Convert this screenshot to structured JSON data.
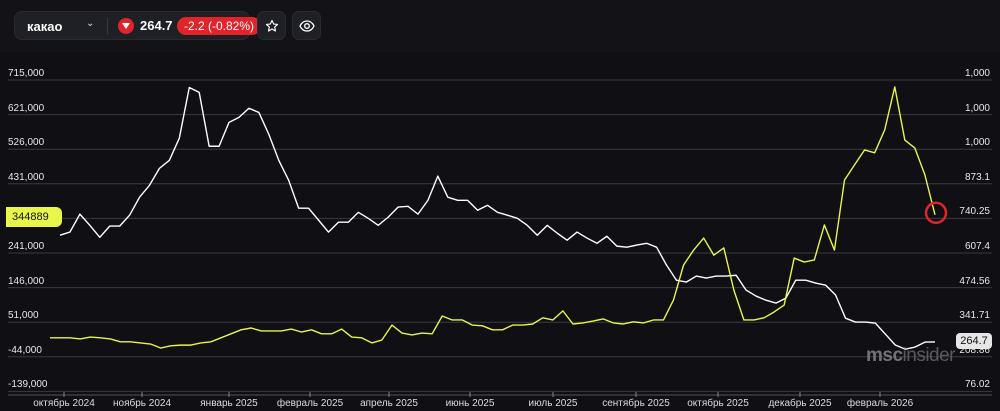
{
  "header": {
    "ticker": "какао",
    "direction_icon": "triangle-down-icon",
    "price": "264.7",
    "change": "-2.2 (-0.82%)",
    "change_color": "#e0242a",
    "favorite_icon": "star-icon",
    "watch_icon": "eye-icon"
  },
  "watermark": {
    "part1": "msc",
    "part2": "insider"
  },
  "chart_data": {
    "type": "line",
    "grid": true,
    "left_axis": {
      "ticks": [
        "715,000",
        "621,000",
        "526,000",
        "431,000",
        "241,000",
        "146,000",
        "51,000",
        "-44,000",
        "-139,000"
      ],
      "range": [
        -139000,
        715000
      ],
      "current_label": "344889"
    },
    "right_axis": {
      "ticks": [
        "1,000",
        "1,000",
        "1,000",
        "873.1",
        "740.25",
        "607.4",
        "474.56",
        "341.71",
        "208.86",
        "76.02"
      ],
      "range": [
        76.02,
        1271.7
      ],
      "current_label": "264.7"
    },
    "x_ticks": [
      "октябрь 2024",
      "ноябрь 2024",
      "январь 2025",
      "февраль 2025",
      "апрель 2025",
      "июнь 2025",
      "июль 2025",
      "сентябрь 2025",
      "октябрь 2025",
      "декабрь 2025",
      "февраль 2026"
    ],
    "series": [
      {
        "axis": "right",
        "color": "#ffffff",
        "values": [
          675,
          687,
          756,
          713,
          667,
          710,
          710,
          752,
          821,
          867,
          932,
          963,
          1048,
          1243,
          1224,
          1017,
          1017,
          1109,
          1128,
          1163,
          1147,
          1063,
          963,
          886,
          779,
          779,
          733,
          687,
          725,
          725,
          763,
          740,
          713,
          744,
          783,
          786,
          756,
          809,
          902,
          821,
          809,
          809,
          771,
          790,
          763,
          752,
          740,
          713,
          675,
          713,
          683,
          656,
          687,
          664,
          644,
          671,
          633,
          629,
          637,
          644,
          629,
          560,
          502,
          495,
          518,
          510,
          518,
          518,
          521,
          464,
          441,
          425,
          414,
          433,
          502,
          502,
          491,
          483,
          445,
          356,
          341,
          341,
          337,
          295,
          253,
          237,
          245,
          264,
          264.7
        ]
      },
      {
        "axis": "left",
        "color": "#e8f54a",
        "values": [
          7000,
          7000,
          7000,
          4000,
          9000,
          7000,
          4000,
          -4000,
          -4000,
          -7000,
          -10000,
          -21000,
          -15000,
          -13000,
          -13000,
          -7000,
          -4000,
          7000,
          18000,
          29000,
          34000,
          26000,
          26000,
          26000,
          31000,
          23000,
          29000,
          18000,
          18000,
          31000,
          9000,
          7000,
          -7000,
          1000,
          42000,
          20000,
          15000,
          20000,
          18000,
          67000,
          56000,
          56000,
          42000,
          40000,
          29000,
          29000,
          42000,
          42000,
          45000,
          62000,
          56000,
          81000,
          45000,
          48000,
          53000,
          59000,
          48000,
          45000,
          51000,
          48000,
          56000,
          56000,
          111000,
          207000,
          248000,
          281000,
          234000,
          254000,
          138000,
          56000,
          56000,
          62000,
          78000,
          97000,
          226000,
          215000,
          221000,
          317000,
          248000,
          440000,
          482000,
          523000,
          515000,
          578000,
          696000,
          550000,
          528000,
          454000,
          344889
        ]
      }
    ],
    "marker": {
      "series": 1,
      "point": "last",
      "color": "#e0242a",
      "shape": "circle"
    }
  }
}
